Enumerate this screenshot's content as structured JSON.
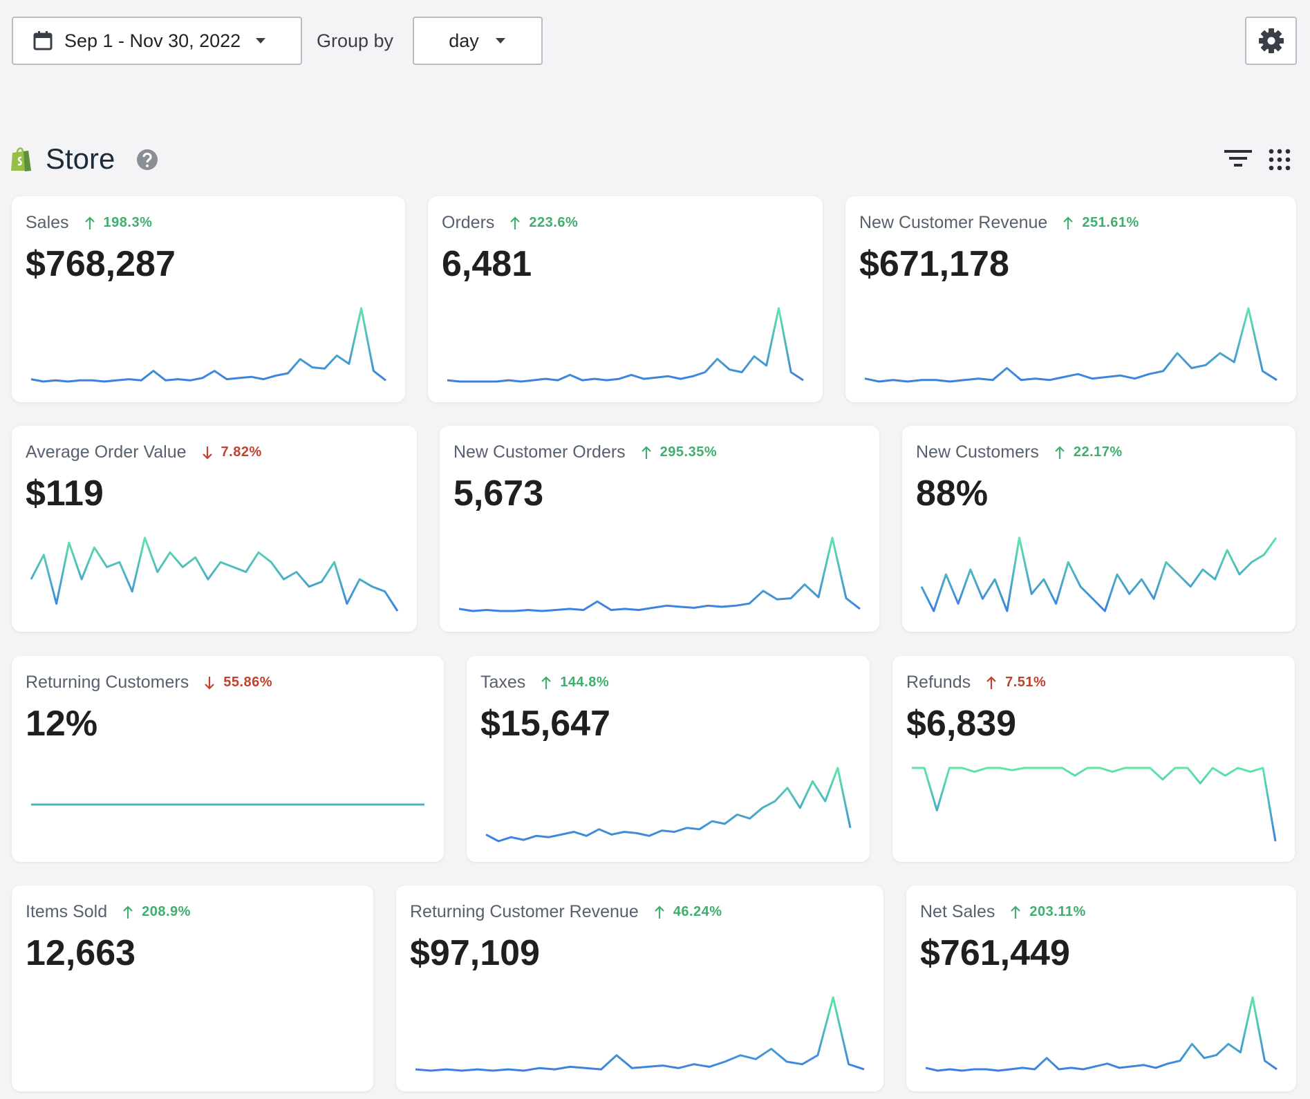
{
  "toolbar": {
    "date_range": "Sep 1 - Nov 30, 2022",
    "group_by_label": "Group by",
    "group_by": "day"
  },
  "section": {
    "title": "Store"
  },
  "cards": [
    {
      "label": "Sales",
      "direction": "up",
      "sentiment": "positive",
      "change": "198.3%",
      "value": "$768,287",
      "sparkline": [
        5,
        3,
        4,
        3,
        4,
        4,
        3,
        4,
        5,
        4,
        12,
        4,
        5,
        4,
        6,
        12,
        5,
        6,
        7,
        5,
        8,
        10,
        22,
        15,
        14,
        25,
        18,
        65,
        12,
        4
      ]
    },
    {
      "label": "Orders",
      "direction": "up",
      "sentiment": "positive",
      "change": "223.6%",
      "value": "6,481",
      "sparkline": [
        4,
        3,
        3,
        3,
        3,
        4,
        3,
        4,
        5,
        4,
        8,
        4,
        5,
        4,
        5,
        8,
        5,
        6,
        7,
        5,
        7,
        10,
        20,
        12,
        10,
        22,
        15,
        58,
        10,
        4
      ]
    },
    {
      "label": "New Customer Revenue",
      "direction": "up",
      "sentiment": "positive",
      "change": "251.61%",
      "value": "$671,178",
      "sparkline": [
        5,
        3,
        4,
        3,
        4,
        4,
        3,
        4,
        5,
        4,
        12,
        4,
        5,
        4,
        6,
        8,
        5,
        6,
        7,
        5,
        8,
        10,
        22,
        12,
        14,
        22,
        16,
        52,
        10,
        4
      ]
    },
    {
      "label": "Average Order Value",
      "direction": "down",
      "sentiment": "negative",
      "change": "7.82%",
      "value": "$119",
      "sparkline": [
        55,
        65,
        45,
        70,
        55,
        68,
        60,
        62,
        50,
        72,
        58,
        66,
        60,
        64,
        55,
        62,
        60,
        58,
        66,
        62,
        55,
        58,
        52,
        54,
        62,
        45,
        55,
        52,
        50,
        42
      ]
    },
    {
      "label": "New Customer Orders",
      "direction": "up",
      "sentiment": "positive",
      "change": "295.35%",
      "value": "5,673",
      "sparkline": [
        5,
        3,
        4,
        3,
        3,
        4,
        3,
        4,
        5,
        4,
        12,
        4,
        5,
        4,
        6,
        8,
        7,
        6,
        8,
        7,
        8,
        10,
        22,
        14,
        15,
        28,
        16,
        72,
        15,
        5
      ]
    },
    {
      "label": "New Customers",
      "direction": "up",
      "sentiment": "positive",
      "change": "22.17%",
      "value": "88%",
      "sparkline": [
        45,
        35,
        50,
        38,
        52,
        40,
        48,
        35,
        65,
        42,
        48,
        38,
        55,
        45,
        40,
        35,
        50,
        42,
        48,
        40,
        55,
        50,
        45,
        52,
        48,
        60,
        50,
        55,
        58,
        65
      ]
    },
    {
      "label": "Returning Customers",
      "direction": "down",
      "sentiment": "negative",
      "change": "55.86%",
      "value": "12%",
      "sparkline": [
        50,
        50,
        50,
        50,
        50,
        50,
        50,
        50,
        50,
        50,
        50,
        50,
        50,
        50,
        50,
        50,
        50,
        50,
        50,
        50,
        50,
        50,
        50,
        50,
        50,
        50,
        50,
        50,
        50,
        50
      ]
    },
    {
      "label": "Taxes",
      "direction": "up",
      "sentiment": "positive",
      "change": "144.8%",
      "value": "$15,647",
      "sparkline": [
        10,
        5,
        8,
        6,
        9,
        8,
        10,
        12,
        9,
        14,
        10,
        12,
        11,
        9,
        13,
        12,
        15,
        14,
        20,
        18,
        25,
        22,
        30,
        35,
        45,
        30,
        50,
        35,
        60,
        15
      ]
    },
    {
      "label": "Refunds",
      "direction": "up",
      "sentiment": "negative",
      "change": "7.51%",
      "value": "$6,839",
      "sparkline": [
        95,
        95,
        40,
        95,
        95,
        90,
        95,
        95,
        92,
        95,
        95,
        95,
        95,
        85,
        95,
        95,
        90,
        95,
        95,
        95,
        80,
        95,
        95,
        75,
        95,
        85,
        95,
        90,
        95,
        0
      ]
    },
    {
      "label": "Items Sold",
      "direction": "up",
      "sentiment": "positive",
      "change": "208.9%",
      "value": "12,663"
    },
    {
      "label": "Returning Customer Revenue",
      "direction": "up",
      "sentiment": "positive",
      "change": "46.24%",
      "value": "$97,109",
      "sparkline": [
        4,
        3,
        4,
        3,
        4,
        3,
        4,
        3,
        5,
        4,
        6,
        5,
        4,
        15,
        5,
        6,
        7,
        5,
        8,
        6,
        10,
        15,
        12,
        20,
        10,
        8,
        15,
        60,
        8,
        4
      ]
    },
    {
      "label": "Net Sales",
      "direction": "up",
      "sentiment": "positive",
      "change": "203.11%",
      "value": "$761,449",
      "sparkline": [
        5,
        3,
        4,
        3,
        4,
        4,
        3,
        4,
        5,
        4,
        12,
        4,
        5,
        4,
        6,
        8,
        5,
        6,
        7,
        5,
        8,
        10,
        22,
        12,
        14,
        22,
        16,
        55,
        10,
        4
      ]
    }
  ]
}
